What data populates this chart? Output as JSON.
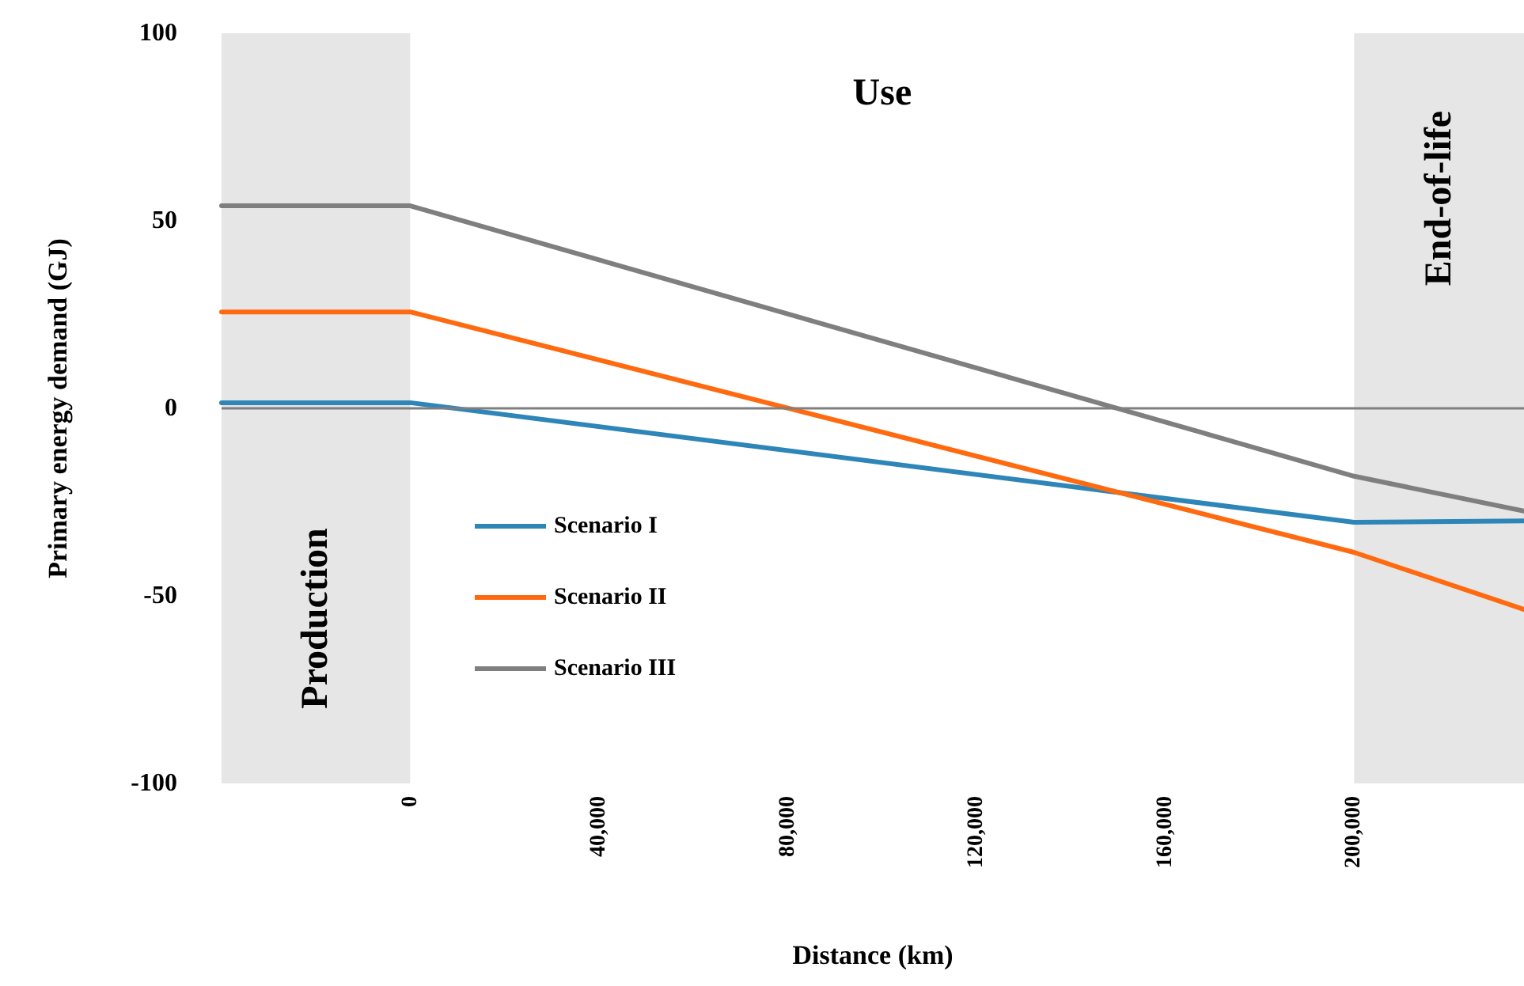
{
  "chart_data": {
    "type": "line",
    "xlabel": "Distance (km)",
    "ylabel": "Primary energy demand (GJ)",
    "series": [
      {
        "name": "Scenario I",
        "color": "#2e86b8",
        "x": [
          -40000,
          0,
          200000,
          236000
        ],
        "values": [
          1.5,
          1.5,
          -30.4,
          -30
        ]
      },
      {
        "name": "Scenario II",
        "color": "#ff6a10",
        "x": [
          -40000,
          0,
          200000,
          236000
        ],
        "values": [
          25.7,
          25.7,
          -38.4,
          -53.6
        ]
      },
      {
        "name": "Scenario III",
        "color": "#7f7f7f",
        "x": [
          -40000,
          0,
          200000,
          236000
        ],
        "values": [
          54,
          54,
          -18.1,
          -27.4
        ]
      }
    ],
    "xlim": [
      -40000,
      236000
    ],
    "xticks": [
      0,
      {
        "value": 40000,
        "label": "40,000"
      },
      {
        "value": 80000,
        "label": "80,000"
      },
      {
        "value": 120000,
        "label": "120,000"
      },
      {
        "value": 160000,
        "label": "160,000"
      },
      {
        "value": 200000,
        "label": "200,000"
      }
    ],
    "ylim": [
      -100,
      100
    ],
    "yticks": [
      -100,
      -50,
      0,
      50,
      100
    ],
    "ref_lines": [
      {
        "axis": "y",
        "value": 0,
        "color": "#7f7f7f"
      }
    ],
    "bands": [
      {
        "axis": "x",
        "from": -40000,
        "to": 0,
        "label": "Production",
        "color": "#e6e6e6"
      },
      {
        "axis": "x",
        "from": 0,
        "to": 200000,
        "label": "Use",
        "color": "#ffffff"
      },
      {
        "axis": "x",
        "from": 200000,
        "to": 236000,
        "label": "End-of-life",
        "color": "#e6e6e6"
      }
    ],
    "grid": false,
    "legend": "left",
    "marker": "none",
    "line_style": "solid"
  }
}
